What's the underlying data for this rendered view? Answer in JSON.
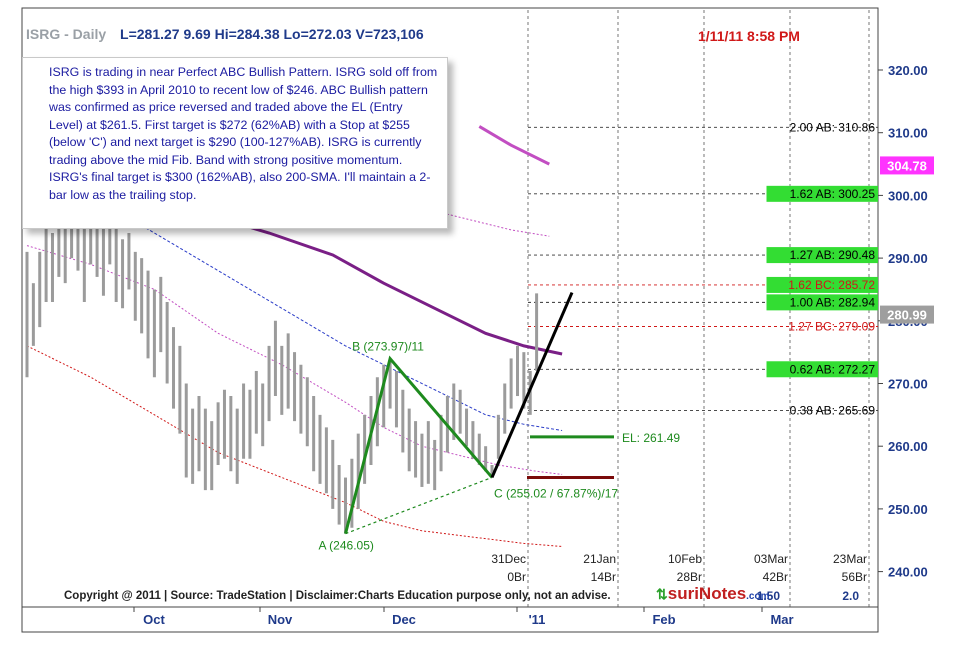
{
  "header": {
    "symbol": "ISRG - Daily",
    "stats": "L=281.27  9.69  Hi=284.38  Lo=272.03  V=723,106",
    "timestamp": "1/11/11 8:58 PM"
  },
  "commentary": "ISRG is trading in near Perfect ABC Bullish Pattern. ISRG sold off from the high $393 in April 2010 to recent low of $246. ABC Bullish pattern was confirmed as price reversed and traded above the EL (Entry Level) at $261.5. First target is $272 (62%AB) with a Stop at $255 (below 'C') and next target is $290 (100-127%AB). ISRG is currently trading above the mid Fib. Band with strong positive momentum. ISRG's final target is $300 (162%AB), also 200-SMA. I'll maintain a 2-bar low as the trailing stop.",
  "footer": {
    "copyright": "Copyright @ 2011 | Source: TradeStation | Disclaimer:Charts Education purpose only, not an advise.",
    "brand_main": "suriNotes",
    "brand_domain": ".com"
  },
  "colors": {
    "price_bars": "#9b9b9b",
    "sma_200": "#7a1f86",
    "band_upper": "#c24ec2",
    "band_mid": "#2a3cc8",
    "band_lower": "#d01818",
    "pattern": "#1e8a1e",
    "projection": "#000000",
    "stop_line": "#7a0a0a",
    "target_box": "#33dd33",
    "last_price_box": "#ff33ff"
  },
  "chart_data": {
    "type": "candlestick",
    "title": "ISRG - Daily",
    "ylim": [
      237,
      326
    ],
    "y_ticks": [
      240,
      250,
      260,
      270,
      280,
      290,
      300,
      310,
      320
    ],
    "x_labels": [
      "Oct",
      "Nov",
      "Dec",
      "'11",
      "Feb",
      "Mar"
    ],
    "future_markers": [
      {
        "date": "31Dec",
        "bars": "0Br",
        "ratio": ""
      },
      {
        "date": "21Jan",
        "bars": "14Br",
        "ratio": ""
      },
      {
        "date": "10Feb",
        "bars": "28Br",
        "ratio": ""
      },
      {
        "date": "03Mar",
        "bars": "42Br",
        "ratio": "1.50"
      },
      {
        "date": "23Mar",
        "bars": "56Br",
        "ratio": "2.0"
      }
    ],
    "pattern_points": [
      {
        "label": "A (246.05)",
        "value": 246.05
      },
      {
        "label": "B (273.97)/11",
        "value": 273.97
      },
      {
        "label": "C (255.02 / 67.87%)/17",
        "value": 255.02
      }
    ],
    "entry_level": {
      "label": "EL: 261.49",
      "value": 261.49
    },
    "stop_level": 255,
    "fib_levels": [
      {
        "label": "2.00 AB: 310.86",
        "value": 310.86,
        "color": "#000000",
        "boxed": false
      },
      {
        "label": "1.62 AB: 300.25",
        "value": 300.25,
        "color": "#000000",
        "boxed": true
      },
      {
        "label": "1.27 AB: 290.48",
        "value": 290.48,
        "color": "#000000",
        "boxed": true
      },
      {
        "label": "1.62 BC: 285.72",
        "value": 285.72,
        "color": "#d01818",
        "boxed": true
      },
      {
        "label": "1.00 AB: 282.94",
        "value": 282.94,
        "color": "#000000",
        "boxed": true
      },
      {
        "label": "1.27 BC: 279.09",
        "value": 279.09,
        "color": "#d01818",
        "boxed": false
      },
      {
        "label": "0.62 AB: 272.27",
        "value": 272.27,
        "color": "#000000",
        "boxed": true
      },
      {
        "label": "0.38 AB: 265.69",
        "value": 265.69,
        "color": "#000000",
        "boxed": false
      }
    ],
    "price_markers": [
      {
        "label": "304.78",
        "value": 304.78
      },
      {
        "label": "280.99",
        "value": 280.99
      }
    ],
    "sma_200": [
      {
        "day": 2,
        "value": 307
      },
      {
        "day": 10,
        "value": 303
      },
      {
        "day": 18,
        "value": 300
      },
      {
        "day": 28,
        "value": 297
      },
      {
        "day": 38,
        "value": 294
      },
      {
        "day": 48,
        "value": 290.5
      },
      {
        "day": 56,
        "value": 286
      },
      {
        "day": 64,
        "value": 282
      },
      {
        "day": 72,
        "value": 278
      },
      {
        "day": 78,
        "value": 276
      },
      {
        "day": 84,
        "value": 274.7
      }
    ],
    "sma_upper_visible": [
      {
        "day": 71,
        "value": 311
      },
      {
        "day": 76,
        "value": 308
      },
      {
        "day": 82,
        "value": 305
      }
    ],
    "band_outer_upper": [
      {
        "day": 56,
        "value": 301
      },
      {
        "day": 66,
        "value": 297
      },
      {
        "day": 76,
        "value": 294.5
      },
      {
        "day": 82,
        "value": 293.5
      }
    ],
    "band_upper": [
      {
        "day": 0,
        "value": 292
      },
      {
        "day": 10,
        "value": 289
      },
      {
        "day": 20,
        "value": 285
      },
      {
        "day": 30,
        "value": 278
      },
      {
        "day": 40,
        "value": 273
      },
      {
        "day": 50,
        "value": 267
      },
      {
        "day": 56,
        "value": 263
      },
      {
        "day": 62,
        "value": 260
      },
      {
        "day": 68,
        "value": 258.5
      },
      {
        "day": 74,
        "value": 257
      },
      {
        "day": 80,
        "value": 256
      },
      {
        "day": 84,
        "value": 255.5
      }
    ],
    "band_mid": [
      {
        "day": 0,
        "value": 305
      },
      {
        "day": 10,
        "value": 300
      },
      {
        "day": 20,
        "value": 294
      },
      {
        "day": 30,
        "value": 288
      },
      {
        "day": 40,
        "value": 282
      },
      {
        "day": 50,
        "value": 276
      },
      {
        "day": 58,
        "value": 272
      },
      {
        "day": 66,
        "value": 268
      },
      {
        "day": 72,
        "value": 265
      },
      {
        "day": 78,
        "value": 263.5
      },
      {
        "day": 84,
        "value": 262.5
      }
    ],
    "band_lower": [
      {
        "day": 0,
        "value": 276
      },
      {
        "day": 10,
        "value": 271
      },
      {
        "day": 20,
        "value": 265
      },
      {
        "day": 30,
        "value": 259
      },
      {
        "day": 40,
        "value": 255
      },
      {
        "day": 50,
        "value": 251
      },
      {
        "day": 56,
        "value": 248
      },
      {
        "day": 62,
        "value": 246.5
      },
      {
        "day": 70,
        "value": 245.5
      },
      {
        "day": 78,
        "value": 244.5
      },
      {
        "day": 84,
        "value": 244
      }
    ],
    "bars": [
      {
        "h": 291,
        "l": 271
      },
      {
        "h": 286,
        "l": 276
      },
      {
        "h": 291,
        "l": 279
      },
      {
        "h": 295,
        "l": 283
      },
      {
        "h": 294,
        "l": 283
      },
      {
        "h": 296,
        "l": 287
      },
      {
        "h": 300,
        "l": 286
      },
      {
        "h": 301,
        "l": 290
      },
      {
        "h": 298,
        "l": 288
      },
      {
        "h": 296,
        "l": 283
      },
      {
        "h": 299,
        "l": 289
      },
      {
        "h": 297,
        "l": 287
      },
      {
        "h": 295,
        "l": 284
      },
      {
        "h": 297,
        "l": 289
      },
      {
        "h": 295,
        "l": 283
      },
      {
        "h": 293,
        "l": 282
      },
      {
        "h": 294,
        "l": 285
      },
      {
        "h": 291,
        "l": 280
      },
      {
        "h": 290,
        "l": 278
      },
      {
        "h": 288,
        "l": 274
      },
      {
        "h": 285,
        "l": 271
      },
      {
        "h": 287,
        "l": 275
      },
      {
        "h": 283,
        "l": 270
      },
      {
        "h": 279,
        "l": 266
      },
      {
        "h": 276,
        "l": 262
      },
      {
        "h": 270,
        "l": 255
      },
      {
        "h": 266,
        "l": 254
      },
      {
        "h": 268,
        "l": 256
      },
      {
        "h": 266,
        "l": 253
      },
      {
        "h": 264,
        "l": 253
      },
      {
        "h": 267,
        "l": 257
      },
      {
        "h": 269,
        "l": 258
      },
      {
        "h": 268,
        "l": 256
      },
      {
        "h": 266,
        "l": 254
      },
      {
        "h": 270,
        "l": 258
      },
      {
        "h": 269,
        "l": 258
      },
      {
        "h": 272,
        "l": 262
      },
      {
        "h": 270,
        "l": 260
      },
      {
        "h": 276,
        "l": 264
      },
      {
        "h": 280,
        "l": 268
      },
      {
        "h": 276,
        "l": 265
      },
      {
        "h": 278,
        "l": 266
      },
      {
        "h": 275,
        "l": 264
      },
      {
        "h": 273,
        "l": 262
      },
      {
        "h": 271,
        "l": 260
      },
      {
        "h": 268,
        "l": 256
      },
      {
        "h": 265,
        "l": 254
      },
      {
        "h": 263,
        "l": 252.5
      },
      {
        "h": 261,
        "l": 250
      },
      {
        "h": 257,
        "l": 247.5
      },
      {
        "h": 255,
        "l": 246.05
      },
      {
        "h": 258,
        "l": 247
      },
      {
        "h": 262,
        "l": 250
      },
      {
        "h": 265,
        "l": 254
      },
      {
        "h": 268,
        "l": 257
      },
      {
        "h": 271,
        "l": 260
      },
      {
        "h": 273,
        "l": 263
      },
      {
        "h": 273.97,
        "l": 266
      },
      {
        "h": 272,
        "l": 263
      },
      {
        "h": 269,
        "l": 259
      },
      {
        "h": 266,
        "l": 256
      },
      {
        "h": 264,
        "l": 255
      },
      {
        "h": 262,
        "l": 253.5
      },
      {
        "h": 264,
        "l": 254
      },
      {
        "h": 261,
        "l": 253
      },
      {
        "h": 265,
        "l": 256
      },
      {
        "h": 268,
        "l": 259
      },
      {
        "h": 270,
        "l": 261
      },
      {
        "h": 269,
        "l": 262
      },
      {
        "h": 266,
        "l": 260
      },
      {
        "h": 264,
        "l": 258
      },
      {
        "h": 262,
        "l": 257
      },
      {
        "h": 260,
        "l": 256
      },
      {
        "h": 257,
        "l": 255.02
      },
      {
        "h": 265,
        "l": 258
      },
      {
        "h": 270,
        "l": 262
      },
      {
        "h": 274,
        "l": 266
      },
      {
        "h": 276,
        "l": 268
      },
      {
        "h": 275,
        "l": 266
      },
      {
        "h": 272,
        "l": 265
      },
      {
        "h": 284.38,
        "l": 272.03
      }
    ]
  }
}
